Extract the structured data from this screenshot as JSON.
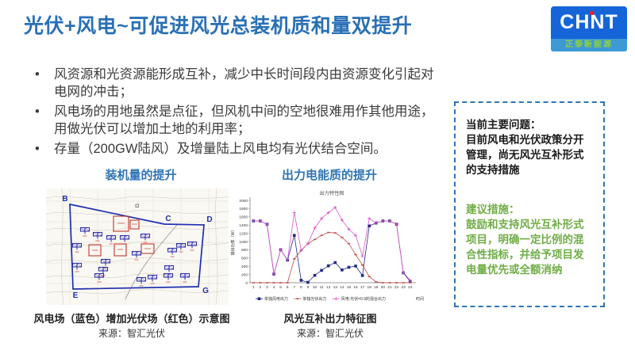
{
  "slide": {
    "title": "光伏+风电~可促进风光总装机质和量双提升",
    "logo": {
      "brand": "CHNT",
      "subtitle": "正泰新能源"
    },
    "bullets": [
      "风资源和光资源能形成互补，减少中长时间段内由资源变化引起对电网的冲击；",
      "风电场的用地虽然是点征，但风机中间的空地很难用作其他用途，用做光伏可以增加土地的利用率；",
      "存量（200GW陆风）及增量陆上风电均有光伏结合空间。"
    ],
    "left_figure": {
      "heading": "装机量的提升",
      "map_labels": {
        "b": "B",
        "c": "C",
        "d": "D",
        "e": "E",
        "g": "G"
      },
      "caption": "风电场（蓝色）增加光伏场（红色）示意图",
      "source": "来源：智汇光伏"
    },
    "right_figure": {
      "heading": "出力电能质的提升",
      "caption": "风光互补出力特征图",
      "source": "来源：智汇光伏"
    },
    "side_panel": {
      "problem_title": "当前主要问题：",
      "problem_body": "目前风电和光伏政策分开管理，尚无风光互补形式的支持措施",
      "suggestion_title": "建议措施：",
      "suggestion_body": "鼓励和支持风光互补形式项目，明确一定比例的混合性指标，并给予项目发电量优先或全额消纳"
    },
    "colors": {
      "accent_blue": "#2E74B5",
      "suggestion_green": "#70AD47",
      "logo_blue": "#1565D8",
      "logo_dot_red": "#E8262D",
      "map_boundary_blue": "#1D2FAE",
      "pv_box_red": "#C0392B"
    }
  },
  "chart_data": {
    "type": "line",
    "title": "出力特性图",
    "xlabel": "时间",
    "ylabel": "输出功率（W）",
    "x": [
      1,
      2,
      3,
      4,
      5,
      6,
      7,
      8,
      9,
      10,
      11,
      12,
      13,
      14,
      15,
      16,
      17,
      18,
      19,
      20,
      21,
      22,
      23,
      24
    ],
    "ylim": [
      0,
      2000
    ],
    "ytick_step": 200,
    "grid": false,
    "legend_position": "bottom",
    "series": [
      {
        "name": "单独风电出力",
        "marker": "square",
        "color": "#232884",
        "values": [
          1500,
          1500,
          1420,
          210,
          800,
          550,
          1150,
          60,
          10,
          180,
          300,
          410,
          490,
          310,
          375,
          405,
          175,
          1380,
          1450,
          1500,
          1500,
          1420,
          240,
          30
        ]
      },
      {
        "name": "单独光伏出力",
        "marker": "dash",
        "color": "#C0504D",
        "values": [
          0,
          0,
          0,
          0,
          0,
          0,
          580,
          780,
          950,
          1050,
          1150,
          1220,
          1210,
          1100,
          950,
          680,
          430,
          150,
          20,
          0,
          0,
          0,
          0,
          0
        ]
      },
      {
        "name": "风电:光伏=0.9的混合出力",
        "marker": "plus",
        "color": "#D957C8",
        "values": [
          1500,
          1500,
          1420,
          210,
          800,
          560,
          1700,
          790,
          950,
          1330,
          1560,
          1700,
          1830,
          1520,
          1300,
          1150,
          650,
          1560,
          1450,
          1500,
          1500,
          1420,
          250,
          60
        ]
      }
    ]
  }
}
